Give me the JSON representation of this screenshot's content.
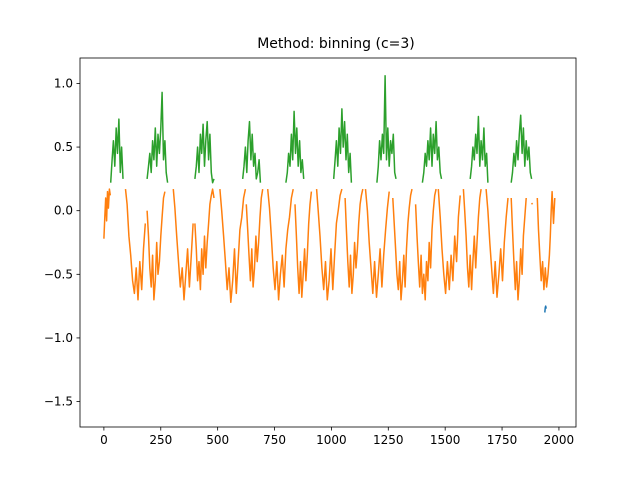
{
  "chart_data": {
    "type": "line",
    "title": "Method: binning (c=3)",
    "xlabel": "",
    "ylabel": "",
    "xlim": [
      -105,
      2075
    ],
    "ylim": [
      -1.7,
      1.2
    ],
    "x_ticks": [
      0,
      250,
      500,
      750,
      1000,
      1250,
      1500,
      1750,
      2000
    ],
    "x_tick_labels": [
      "0",
      "250",
      "500",
      "750",
      "1000",
      "1250",
      "1500",
      "1750",
      "2000"
    ],
    "y_ticks": [
      -1.5,
      -1.0,
      -0.5,
      0.0,
      0.5,
      1.0
    ],
    "y_tick_labels": [
      "−1.5",
      "−1.0",
      "−0.5",
      "0.0",
      "0.5",
      "1.0"
    ],
    "grid": false,
    "legend": "none",
    "series": [
      {
        "color": "#1f77b4",
        "segments": [
          {
            "x": [
              1938,
              1940,
              1942,
              1944
            ],
            "y": [
              -0.8,
              -0.76,
              -0.75,
              -0.77
            ]
          }
        ]
      },
      {
        "color": "#ff7f0e",
        "segments": [
          {
            "x": [
              0,
              4,
              8,
              12,
              16,
              20,
              24,
              28
            ],
            "y": [
              -0.22,
              -0.05,
              0.1,
              -0.08,
              0.15,
              0.02,
              0.17,
              0.12
            ]
          },
          {
            "x": [
              95,
              102,
              110,
              118,
              126,
              134,
              142,
              150,
              158,
              166,
              174,
              182
            ],
            "y": [
              0.17,
              0.05,
              -0.2,
              -0.35,
              -0.55,
              -0.65,
              -0.45,
              -0.7,
              -0.4,
              -0.62,
              -0.3,
              -0.1
            ]
          },
          {
            "x": [
              190,
              196,
              202,
              208,
              214,
              220,
              226,
              232,
              238,
              244,
              250,
              256,
              262,
              268
            ],
            "y": [
              0.0,
              -0.2,
              -0.45,
              -0.6,
              -0.35,
              -0.7,
              -0.55,
              -0.25,
              -0.5,
              -0.4,
              -0.2,
              -0.05,
              0.1,
              0.15
            ]
          },
          {
            "x": [
              305,
              312,
              320,
              328,
              336,
              344,
              352,
              360,
              368,
              376,
              384,
              392
            ],
            "y": [
              0.17,
              0.02,
              -0.2,
              -0.4,
              -0.6,
              -0.45,
              -0.7,
              -0.5,
              -0.3,
              -0.6,
              -0.35,
              -0.1
            ]
          },
          {
            "x": [
              400,
              406,
              412,
              418,
              424,
              430,
              436,
              442,
              448,
              454,
              460,
              466,
              472,
              478,
              484
            ],
            "y": [
              -0.1,
              -0.3,
              -0.55,
              -0.4,
              -0.62,
              -0.3,
              -0.5,
              -0.2,
              -0.45,
              -0.25,
              -0.1,
              0.05,
              0.12,
              0.17,
              0.1
            ]
          },
          {
            "x": [
              510,
              518,
              526,
              534,
              542,
              550,
              558,
              566,
              574,
              582,
              590,
              598,
              606,
              614,
              622
            ],
            "y": [
              0.17,
              0.0,
              -0.2,
              -0.4,
              -0.62,
              -0.45,
              -0.72,
              -0.55,
              -0.3,
              -0.65,
              -0.4,
              -0.15,
              -0.05,
              0.1,
              0.17
            ]
          },
          {
            "x": [
              626,
              632,
              638,
              644,
              650,
              656,
              662,
              668,
              674,
              680,
              686,
              692,
              698
            ],
            "y": [
              0.05,
              -0.15,
              -0.35,
              -0.55,
              -0.3,
              -0.6,
              -0.45,
              -0.2,
              -0.4,
              -0.25,
              -0.05,
              0.1,
              0.17
            ]
          },
          {
            "x": [
              720,
              728,
              736,
              744,
              752,
              760,
              768,
              776,
              784,
              792,
              800,
              808,
              816,
              824,
              832
            ],
            "y": [
              0.17,
              0.02,
              -0.2,
              -0.45,
              -0.62,
              -0.4,
              -0.7,
              -0.5,
              -0.35,
              -0.6,
              -0.3,
              -0.15,
              -0.05,
              0.1,
              0.17
            ]
          },
          {
            "x": [
              840,
              846,
              852,
              858,
              864,
              870,
              876,
              882,
              888,
              894,
              900,
              906,
              912
            ],
            "y": [
              0.05,
              -0.2,
              -0.45,
              -0.65,
              -0.4,
              -0.68,
              -0.5,
              -0.3,
              -0.55,
              -0.35,
              -0.1,
              0.05,
              0.15
            ]
          },
          {
            "x": [
              935,
              942,
              950,
              958,
              966,
              974,
              982,
              990,
              998,
              1006,
              1014,
              1022,
              1030,
              1038,
              1046
            ],
            "y": [
              0.17,
              0.0,
              -0.2,
              -0.45,
              -0.62,
              -0.4,
              -0.7,
              -0.55,
              -0.3,
              -0.62,
              -0.35,
              -0.1,
              0.0,
              0.12,
              0.17
            ]
          },
          {
            "x": [
              1060,
              1066,
              1072,
              1078,
              1084,
              1090,
              1096,
              1102,
              1108,
              1114,
              1120,
              1126,
              1132,
              1138
            ],
            "y": [
              0.1,
              -0.15,
              -0.4,
              -0.6,
              -0.35,
              -0.65,
              -0.5,
              -0.25,
              -0.45,
              -0.3,
              -0.1,
              0.05,
              0.12,
              0.17
            ]
          },
          {
            "x": [
              1150,
              1158,
              1166,
              1174,
              1182,
              1190,
              1198,
              1206,
              1214,
              1222,
              1230,
              1238,
              1246,
              1254
            ],
            "y": [
              0.17,
              0.0,
              -0.25,
              -0.45,
              -0.65,
              -0.4,
              -0.68,
              -0.5,
              -0.3,
              -0.6,
              -0.35,
              -0.15,
              0.02,
              0.15
            ]
          },
          {
            "x": [
              1270,
              1276,
              1282,
              1288,
              1294,
              1300,
              1306,
              1312,
              1318,
              1324,
              1330,
              1336,
              1342,
              1348,
              1354
            ],
            "y": [
              0.1,
              -0.1,
              -0.3,
              -0.5,
              -0.62,
              -0.4,
              -0.7,
              -0.55,
              -0.35,
              -0.6,
              -0.3,
              -0.1,
              0.02,
              0.12,
              0.17
            ]
          },
          {
            "x": [
              1370,
              1376,
              1382,
              1388,
              1394,
              1400,
              1406,
              1412,
              1418,
              1424,
              1430,
              1436,
              1442,
              1448,
              1454,
              1460
            ],
            "y": [
              0.05,
              -0.2,
              -0.4,
              -0.6,
              -0.35,
              -0.65,
              -0.5,
              -0.7,
              -0.4,
              -0.55,
              -0.25,
              -0.45,
              -0.15,
              0.0,
              0.12,
              0.17
            ]
          },
          {
            "x": [
              1470,
              1478,
              1486,
              1494,
              1502,
              1510,
              1518,
              1526,
              1534,
              1542,
              1550,
              1558,
              1566
            ],
            "y": [
              0.17,
              -0.05,
              -0.3,
              -0.5,
              -0.65,
              -0.4,
              -0.62,
              -0.35,
              -0.55,
              -0.2,
              -0.4,
              -0.05,
              0.12
            ]
          },
          {
            "x": [
              1580,
              1586,
              1592,
              1598,
              1604,
              1610,
              1616,
              1622,
              1628,
              1634,
              1640,
              1646,
              1652,
              1658
            ],
            "y": [
              0.17,
              0.0,
              -0.2,
              -0.45,
              -0.6,
              -0.35,
              -0.62,
              -0.4,
              -0.2,
              -0.45,
              -0.25,
              -0.05,
              0.1,
              0.17
            ]
          },
          {
            "x": [
              1680,
              1688,
              1696,
              1704,
              1712,
              1720,
              1728,
              1736,
              1744,
              1752,
              1760,
              1768,
              1776
            ],
            "y": [
              0.17,
              0.0,
              -0.25,
              -0.45,
              -0.65,
              -0.4,
              -0.68,
              -0.5,
              -0.3,
              -0.55,
              -0.25,
              -0.05,
              0.1
            ]
          },
          {
            "x": [
              1790,
              1796,
              1802,
              1808,
              1814,
              1820,
              1826,
              1832,
              1838,
              1844,
              1850,
              1856
            ],
            "y": [
              0.1,
              -0.15,
              -0.4,
              -0.62,
              -0.4,
              -0.7,
              -0.55,
              -0.3,
              -0.5,
              -0.2,
              -0.05,
              0.1
            ]
          },
          {
            "x": [
              1880,
              1884
            ],
            "y": [
              0.06,
              0.05
            ]
          },
          {
            "x": [
              1905,
              1910,
              1916,
              1922,
              1928,
              1934,
              1940,
              1946,
              1952,
              1958,
              1962,
              1966,
              1970,
              1976,
              1982
            ],
            "y": [
              0.1,
              -0.15,
              -0.35,
              -0.55,
              -0.4,
              -0.62,
              -0.45,
              -0.6,
              -0.5,
              -0.35,
              -0.2,
              0.0,
              0.15,
              -0.1,
              0.1
            ]
          }
        ]
      },
      {
        "color": "#2ca02c",
        "segments": [
          {
            "x": [
              30,
              36,
              42,
              48,
              54,
              60,
              66,
              72,
              78,
              84
            ],
            "y": [
              0.22,
              0.4,
              0.55,
              0.35,
              0.65,
              0.45,
              0.72,
              0.3,
              0.5,
              0.25
            ]
          },
          {
            "x": [
              190,
              196,
              202,
              208,
              214,
              220,
              226,
              232,
              238,
              244,
              250,
              256,
              262,
              268,
              274,
              280
            ],
            "y": [
              0.25,
              0.35,
              0.45,
              0.3,
              0.55,
              0.4,
              0.65,
              0.35,
              0.6,
              0.45,
              0.65,
              0.93,
              0.4,
              0.55,
              0.3,
              0.22
            ]
          },
          {
            "x": [
              400,
              406,
              412,
              418,
              424,
              430,
              436,
              442,
              448,
              454,
              460,
              466,
              472,
              478,
              484
            ],
            "y": [
              0.25,
              0.35,
              0.5,
              0.3,
              0.6,
              0.45,
              0.68,
              0.35,
              0.55,
              0.7,
              0.4,
              0.6,
              0.3,
              0.22,
              0.25
            ]
          },
          {
            "x": [
              610,
              616,
              622,
              628,
              634,
              640,
              646,
              652,
              658,
              664,
              670,
              676,
              682,
              688
            ],
            "y": [
              0.25,
              0.35,
              0.5,
              0.3,
              0.55,
              0.7,
              0.4,
              0.6,
              0.35,
              0.45,
              0.25,
              0.3,
              0.4,
              0.22
            ]
          },
          {
            "x": [
              800,
              806,
              812,
              818,
              824,
              830,
              836,
              842,
              848,
              854,
              860,
              866,
              872,
              878
            ],
            "y": [
              0.22,
              0.3,
              0.45,
              0.35,
              0.6,
              0.4,
              0.78,
              0.45,
              0.65,
              0.35,
              0.55,
              0.3,
              0.4,
              0.25
            ]
          },
          {
            "x": [
              1010,
              1016,
              1022,
              1028,
              1034,
              1040,
              1046,
              1052,
              1058,
              1064,
              1070,
              1076,
              1082,
              1088
            ],
            "y": [
              0.25,
              0.4,
              0.55,
              0.35,
              0.65,
              0.45,
              0.8,
              0.5,
              0.7,
              0.4,
              0.6,
              0.3,
              0.45,
              0.22
            ]
          },
          {
            "x": [
              1200,
              1206,
              1212,
              1218,
              1224,
              1230,
              1236,
              1242,
              1248,
              1254,
              1260,
              1266,
              1272,
              1278,
              1284
            ],
            "y": [
              0.22,
              0.35,
              0.55,
              0.4,
              0.6,
              0.45,
              1.06,
              0.4,
              0.65,
              0.35,
              0.55,
              0.45,
              0.6,
              0.3,
              0.25
            ]
          },
          {
            "x": [
              1400,
              1406,
              1412,
              1418,
              1424,
              1430,
              1436,
              1442,
              1448,
              1454,
              1460,
              1466,
              1472,
              1478,
              1484
            ],
            "y": [
              0.22,
              0.3,
              0.45,
              0.35,
              0.55,
              0.4,
              0.65,
              0.35,
              0.6,
              0.45,
              0.7,
              0.4,
              0.5,
              0.3,
              0.25
            ]
          },
          {
            "x": [
              1610,
              1616,
              1622,
              1628,
              1634,
              1640,
              1646,
              1652,
              1658,
              1664,
              1670,
              1676,
              1682,
              1688
            ],
            "y": [
              0.25,
              0.35,
              0.5,
              0.4,
              0.6,
              0.45,
              0.74,
              0.35,
              0.55,
              0.4,
              0.65,
              0.35,
              0.45,
              0.22
            ]
          },
          {
            "x": [
              1790,
              1796,
              1802,
              1808,
              1814,
              1820,
              1826,
              1832,
              1838,
              1844,
              1850,
              1856,
              1862,
              1868,
              1874,
              1880
            ],
            "y": [
              0.22,
              0.3,
              0.45,
              0.35,
              0.55,
              0.4,
              0.6,
              0.75,
              0.45,
              0.65,
              0.35,
              0.55,
              0.4,
              0.5,
              0.3,
              0.25
            ]
          }
        ]
      }
    ]
  }
}
